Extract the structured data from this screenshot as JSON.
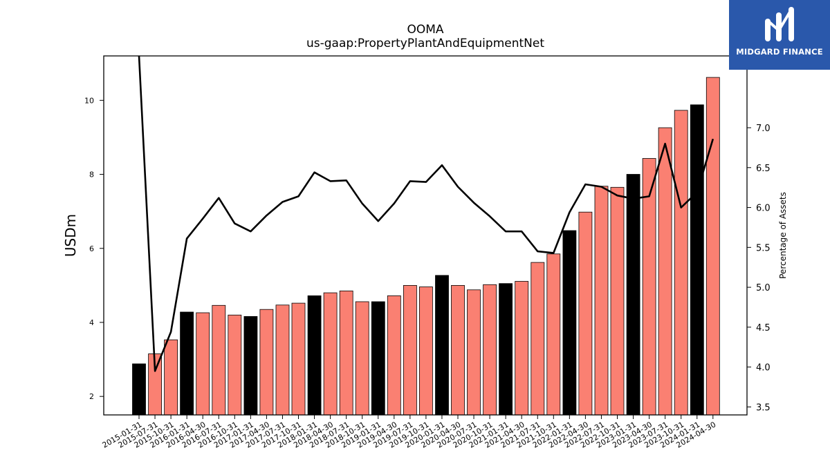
{
  "chart_data": {
    "type": "bar",
    "title": "OOMA",
    "subtitle": "us-gaap:PropertyPlantAndEquipmentNet",
    "ylabel": "USDm",
    "y2label": "Percentage of Assets",
    "ylim": [
      1.5,
      11.2
    ],
    "y2lim": [
      3.4,
      7.9
    ],
    "yticks": [
      2,
      4,
      6,
      8,
      10
    ],
    "y2ticks": [
      3.5,
      4.0,
      4.5,
      5.0,
      5.5,
      6.0,
      6.5,
      7.0
    ],
    "categories": [
      "2015-01-31",
      "2015-07-31",
      "2015-10-31",
      "2016-01-31",
      "2016-04-30",
      "2016-07-31",
      "2016-10-31",
      "2017-01-31",
      "2017-04-30",
      "2017-07-31",
      "2017-10-31",
      "2018-01-31",
      "2018-04-30",
      "2018-07-31",
      "2018-10-31",
      "2019-01-31",
      "2019-04-30",
      "2019-07-31",
      "2019-10-31",
      "2020-01-31",
      "2020-04-30",
      "2020-07-31",
      "2020-10-31",
      "2021-01-31",
      "2021-04-30",
      "2021-07-31",
      "2021-10-31",
      "2022-01-31",
      "2022-04-30",
      "2022-07-31",
      "2022-10-31",
      "2023-01-31",
      "2023-04-30",
      "2023-07-31",
      "2023-10-31",
      "2024-01-31",
      "2024-04-30"
    ],
    "series": [
      {
        "type": "bar",
        "axis": "left",
        "values": [
          2.88,
          3.15,
          3.53,
          4.28,
          4.26,
          4.46,
          4.2,
          4.16,
          4.35,
          4.47,
          4.52,
          4.72,
          4.8,
          4.85,
          4.56,
          4.56,
          4.72,
          5.0,
          4.96,
          5.27,
          5.0,
          4.88,
          5.02,
          5.05,
          5.11,
          5.62,
          5.85,
          6.48,
          6.98,
          7.68,
          7.65,
          8.0,
          8.43,
          9.26,
          9.73,
          9.88,
          10.62
        ],
        "colors": [
          "#000000",
          "#fa8072",
          "#fa8072",
          "#000000",
          "#fa8072",
          "#fa8072",
          "#fa8072",
          "#000000",
          "#fa8072",
          "#fa8072",
          "#fa8072",
          "#000000",
          "#fa8072",
          "#fa8072",
          "#fa8072",
          "#000000",
          "#fa8072",
          "#fa8072",
          "#fa8072",
          "#000000",
          "#fa8072",
          "#fa8072",
          "#fa8072",
          "#000000",
          "#fa8072",
          "#fa8072",
          "#fa8072",
          "#000000",
          "#fa8072",
          "#fa8072",
          "#fa8072",
          "#000000",
          "#fa8072",
          "#fa8072",
          "#fa8072",
          "#000000",
          "#fa8072"
        ]
      },
      {
        "type": "line",
        "axis": "right",
        "color": "#000000",
        "values": [
          8.0,
          3.95,
          4.44,
          5.61,
          5.86,
          6.12,
          5.8,
          5.7,
          5.9,
          6.07,
          6.14,
          6.44,
          6.33,
          6.34,
          6.05,
          5.83,
          6.05,
          6.33,
          6.32,
          6.53,
          6.26,
          6.06,
          5.89,
          5.7,
          5.7,
          5.45,
          5.43,
          5.94,
          6.29,
          6.26,
          6.15,
          6.11,
          6.14,
          6.8,
          6.0,
          6.19,
          6.86
        ]
      }
    ],
    "grid": false,
    "legend": "none"
  },
  "logo": {
    "name": "midgard-finance-logo",
    "text": "MIDGARD FINANCE",
    "background": "#2a58ab"
  }
}
